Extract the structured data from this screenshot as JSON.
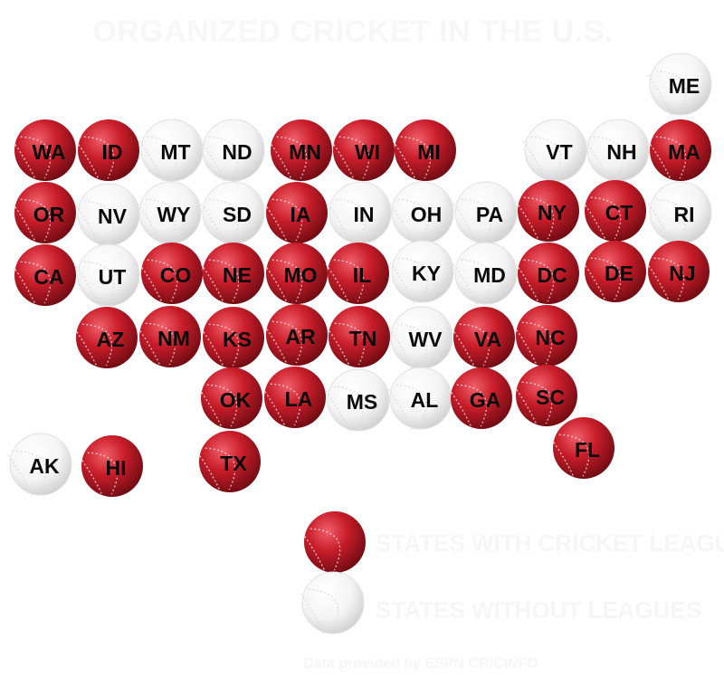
{
  "title": "ORGANIZED CRICKET IN THE U.S.",
  "colors": {
    "with_league": "#c91d2a",
    "without_league": "#ffffff",
    "seam": "#f1f1f1"
  },
  "legend": {
    "with_label": "STATES WITH CRICKET LEAGUES",
    "without_label": "STATES WITHOUT LEAGUES"
  },
  "credit": "Data provided by ESPN CRICINFO",
  "states": [
    {
      "abbr": "ME",
      "league": false
    },
    {
      "abbr": "WA",
      "league": true
    },
    {
      "abbr": "ID",
      "league": true
    },
    {
      "abbr": "MT",
      "league": false
    },
    {
      "abbr": "ND",
      "league": false
    },
    {
      "abbr": "MN",
      "league": true
    },
    {
      "abbr": "WI",
      "league": true
    },
    {
      "abbr": "MI",
      "league": true
    },
    {
      "abbr": "VT",
      "league": false
    },
    {
      "abbr": "NH",
      "league": false
    },
    {
      "abbr": "MA",
      "league": true
    },
    {
      "abbr": "OR",
      "league": true
    },
    {
      "abbr": "NV",
      "league": false
    },
    {
      "abbr": "WY",
      "league": false
    },
    {
      "abbr": "SD",
      "league": false
    },
    {
      "abbr": "IA",
      "league": true
    },
    {
      "abbr": "IN",
      "league": false
    },
    {
      "abbr": "OH",
      "league": false
    },
    {
      "abbr": "PA",
      "league": false
    },
    {
      "abbr": "NY",
      "league": true
    },
    {
      "abbr": "CT",
      "league": true
    },
    {
      "abbr": "RI",
      "league": false
    },
    {
      "abbr": "CA",
      "league": true
    },
    {
      "abbr": "UT",
      "league": false
    },
    {
      "abbr": "CO",
      "league": true
    },
    {
      "abbr": "NE",
      "league": true
    },
    {
      "abbr": "MO",
      "league": true
    },
    {
      "abbr": "IL",
      "league": true
    },
    {
      "abbr": "KY",
      "league": false
    },
    {
      "abbr": "MD",
      "league": false
    },
    {
      "abbr": "DC",
      "league": true
    },
    {
      "abbr": "DE",
      "league": true
    },
    {
      "abbr": "NJ",
      "league": true
    },
    {
      "abbr": "AZ",
      "league": true
    },
    {
      "abbr": "NM",
      "league": true
    },
    {
      "abbr": "KS",
      "league": true
    },
    {
      "abbr": "AR",
      "league": true
    },
    {
      "abbr": "TN",
      "league": true
    },
    {
      "abbr": "WV",
      "league": false
    },
    {
      "abbr": "VA",
      "league": true
    },
    {
      "abbr": "NC",
      "league": true
    },
    {
      "abbr": "OK",
      "league": true
    },
    {
      "abbr": "LA",
      "league": true
    },
    {
      "abbr": "MS",
      "league": false
    },
    {
      "abbr": "AL",
      "league": false
    },
    {
      "abbr": "GA",
      "league": true
    },
    {
      "abbr": "SC",
      "league": true
    },
    {
      "abbr": "FL",
      "league": true
    },
    {
      "abbr": "AK",
      "league": false
    },
    {
      "abbr": "HI",
      "league": true
    },
    {
      "abbr": "TX",
      "league": true
    }
  ]
}
